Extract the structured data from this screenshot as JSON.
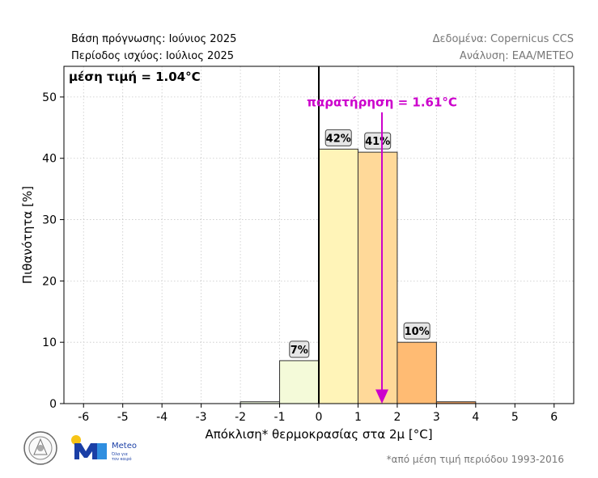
{
  "header": {
    "base_forecast": "Βάση πρόγνωσης: Ιούνιος 2025",
    "validity_period": "Περίοδος ισχύος: Ιούλιος 2025",
    "data_source": "Δεδομένα: Copernicus CCS",
    "analysis": "Ανάλυση: ΕΑΑ/ΜΕΤΕΟ"
  },
  "footer": {
    "footnote": "*από μέση τιμή περιόδου 1993-2016",
    "meteo_name": "Meteo",
    "meteo_tagline_1": "Όλα για",
    "meteo_tagline_2": "τον καιρό"
  },
  "colors": {
    "observation": "#cc00cc",
    "bar_edge": "#333333"
  },
  "chart_data": {
    "type": "bar",
    "xlabel": "Απόκλιση* θερμοκρασίας στα 2μ [°C]",
    "ylabel": "Πιθανότητα [%]",
    "xlim": [
      -6.5,
      6.5
    ],
    "ylim": [
      0,
      55
    ],
    "xticks": [
      -6,
      -5,
      -4,
      -3,
      -2,
      -1,
      0,
      1,
      2,
      3,
      4,
      5,
      6
    ],
    "yticks": [
      0,
      10,
      20,
      30,
      40,
      50
    ],
    "grid": true,
    "mean_annotation": "μέση τιμή = 1.04°C",
    "observation": {
      "value": 1.61,
      "label": "παρατήρηση = 1.61°C"
    },
    "zero_line": 0,
    "bars": [
      {
        "x0": -2,
        "x1": -1,
        "value": 0.3,
        "color": "#e6f0d6",
        "label": ""
      },
      {
        "x0": -1,
        "x1": 0,
        "value": 7,
        "color": "#f4fad9",
        "label": "7%"
      },
      {
        "x0": 0,
        "x1": 1,
        "value": 41.5,
        "color": "#fff4b8",
        "label": "42%"
      },
      {
        "x0": 1,
        "x1": 2,
        "value": 41,
        "color": "#ffd999",
        "label": "41%"
      },
      {
        "x0": 2,
        "x1": 3,
        "value": 10,
        "color": "#ffbb73",
        "label": "10%"
      },
      {
        "x0": 3,
        "x1": 4,
        "value": 0.3,
        "color": "#f0a060",
        "label": ""
      }
    ]
  }
}
